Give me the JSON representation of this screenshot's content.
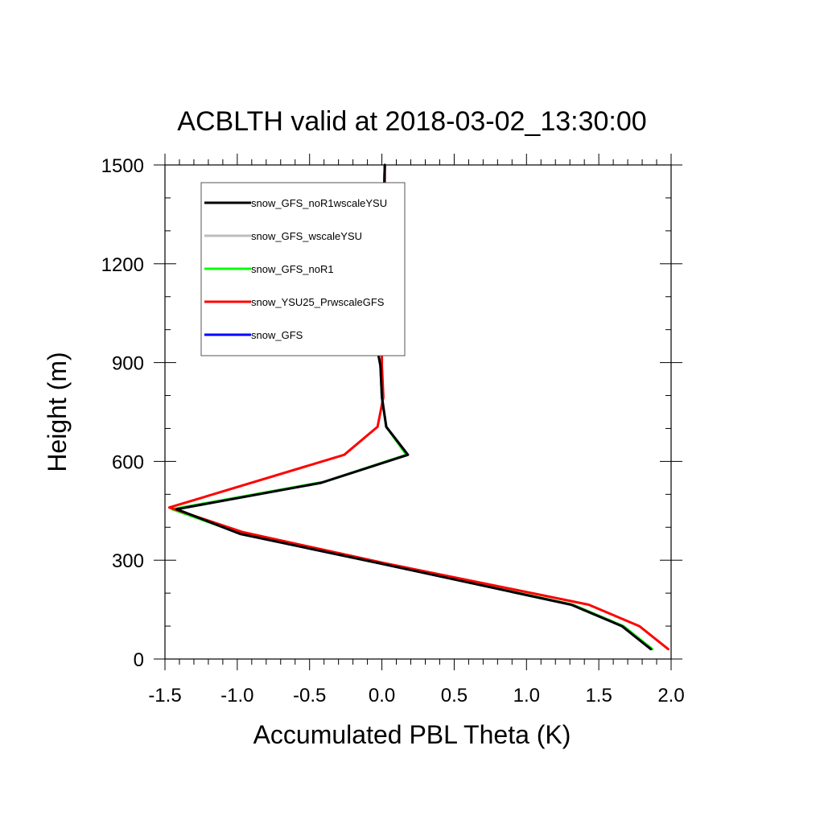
{
  "chart_data": {
    "type": "line",
    "title": "ACBLTH valid at 2018-03-02_13:30:00",
    "xlabel": "Accumulated PBL Theta (K)",
    "ylabel": "Height (m)",
    "xlim": [
      -1.5,
      2.0
    ],
    "ylim": [
      0,
      1500
    ],
    "xticks": [
      -1.5,
      -1.0,
      -0.5,
      0.0,
      0.5,
      1.0,
      1.5,
      2.0
    ],
    "xtick_labels": [
      "-1.5",
      "-1.0",
      "-0.5",
      "0.0",
      "0.5",
      "1.0",
      "1.5",
      "2.0"
    ],
    "yticks": [
      0,
      300,
      600,
      900,
      1200,
      1500
    ],
    "ytick_labels": [
      "0",
      "300",
      "600",
      "900",
      "1200",
      "1500"
    ],
    "x_minor_step": 0.1,
    "y_minor_step": 100,
    "grid": false,
    "legend_position": "top-left",
    "series": [
      {
        "name": "snow_GFS_noR1wscaleYSU",
        "color": "#000000",
        "x": [
          1.86,
          1.66,
          1.31,
          -0.01,
          -0.98,
          -1.42,
          -0.42,
          0.18,
          0.03,
          0.0,
          -0.01,
          -0.05,
          0.0,
          0.02
        ],
        "y": [
          30,
          100,
          165,
          290,
          380,
          455,
          535,
          620,
          705,
          795,
          890,
          985,
          1180,
          1500
        ]
      },
      {
        "name": "snow_GFS_wscaleYSU",
        "color": "#bebebe",
        "x": [
          1.86,
          1.66,
          1.31,
          -0.01,
          -0.98,
          -1.42,
          -0.42,
          0.18,
          0.03,
          0.0,
          -0.01,
          -0.05,
          0.0,
          0.02
        ],
        "y": [
          30,
          100,
          165,
          290,
          380,
          455,
          535,
          620,
          705,
          795,
          890,
          985,
          1180,
          1500
        ]
      },
      {
        "name": "snow_GFS_noR1",
        "color": "#00ff00",
        "x": [
          1.87,
          1.67,
          1.32,
          0.0,
          -0.97,
          -1.45,
          -0.4,
          0.17,
          0.03,
          0.0,
          -0.01,
          -0.05,
          0.0,
          0.02
        ],
        "y": [
          30,
          100,
          165,
          290,
          380,
          455,
          538,
          620,
          705,
          795,
          890,
          985,
          1180,
          1500
        ]
      },
      {
        "name": "snow_YSU25_PrwscaleGFS",
        "color": "#ff0000",
        "x": [
          1.98,
          1.78,
          1.43,
          0.03,
          -0.96,
          -1.47,
          -0.26,
          -0.03,
          0.01,
          0.0,
          0.0,
          0.0,
          0.02,
          0.02
        ],
        "y": [
          30,
          100,
          165,
          290,
          385,
          460,
          620,
          705,
          795,
          890,
          985,
          1180,
          1300,
          1500
        ]
      },
      {
        "name": "snow_GFS",
        "color": "#0000ff",
        "x": [
          1.86,
          1.66,
          1.31,
          -0.01,
          -0.98,
          -1.42,
          -0.42,
          0.18,
          0.03,
          0.0,
          -0.01,
          -0.05,
          0.0,
          0.02
        ],
        "y": [
          30,
          100,
          165,
          290,
          380,
          455,
          535,
          620,
          705,
          795,
          890,
          985,
          1180,
          1500
        ]
      }
    ],
    "draw_order": [
      4,
      2,
      1,
      3,
      0
    ]
  }
}
